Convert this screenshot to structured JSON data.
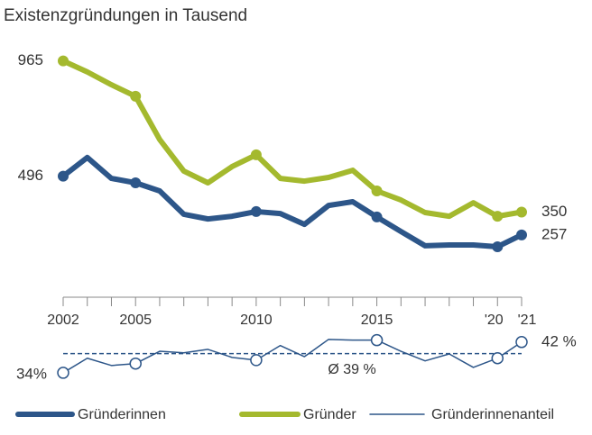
{
  "chart_data": {
    "type": "line",
    "title": "Existenzgründungen in Tausend",
    "categories": [
      "2002",
      null,
      null,
      "2005",
      null,
      null,
      null,
      null,
      "2010",
      null,
      null,
      null,
      null,
      "2015",
      null,
      null,
      null,
      null,
      "'20",
      "'21"
    ],
    "ylim": [
      0,
      1000
    ],
    "y2lim": [
      30,
      45
    ],
    "marker_indices": [
      0,
      3,
      8,
      13,
      18,
      19
    ],
    "series": [
      {
        "name": "Gründerinnen",
        "color": "#2d5689",
        "values": [
          496,
          572,
          487,
          469,
          436,
          341,
          322,
          333,
          352,
          344,
          300,
          377,
          392,
          330,
          271,
          213,
          216,
          216,
          209,
          257
        ],
        "value_labels": [
          "496",
          null,
          null,
          null,
          null,
          null,
          null,
          null,
          null,
          null,
          null,
          null,
          null,
          null,
          null,
          null,
          null,
          null,
          null,
          "257"
        ]
      },
      {
        "name": "Gründer",
        "color": "#a4b92e",
        "values": [
          965,
          920,
          868,
          821,
          645,
          517,
          469,
          535,
          583,
          487,
          476,
          491,
          520,
          436,
          399,
          348,
          333,
          388,
          333,
          350
        ],
        "value_labels": [
          "965",
          null,
          null,
          null,
          null,
          null,
          null,
          null,
          null,
          null,
          null,
          null,
          null,
          null,
          null,
          null,
          null,
          null,
          null,
          "350"
        ]
      },
      {
        "name": "Gründerinnenanteil",
        "color": "#2d5689",
        "axis": "y2",
        "values": [
          34,
          37.8,
          35.9,
          36.4,
          39.6,
          39.2,
          40.1,
          38,
          37.3,
          41.1,
          38.2,
          42.7,
          42.5,
          42.5,
          39.6,
          37.1,
          38.9,
          35.4,
          37.8,
          42
        ],
        "value_labels": [
          "34%",
          null,
          null,
          null,
          null,
          null,
          null,
          null,
          null,
          null,
          null,
          null,
          null,
          null,
          null,
          null,
          null,
          null,
          null,
          "42 %"
        ],
        "average": 39,
        "average_label": "Ø 39 %"
      }
    ]
  }
}
